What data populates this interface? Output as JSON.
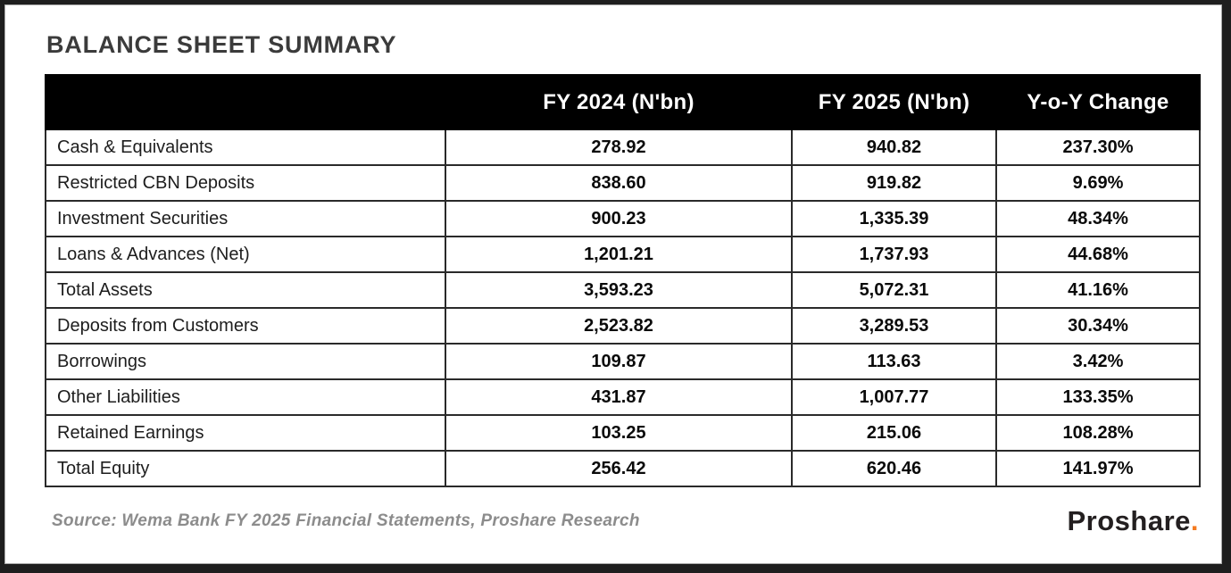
{
  "title": "BALANCE SHEET SUMMARY",
  "chart_data": {
    "type": "table",
    "title": "BALANCE SHEET SUMMARY",
    "columns": [
      "FY 2024 (N'bn)",
      "FY 2025 (N'bn)",
      "Y-o-Y Change"
    ],
    "rows": [
      {
        "label": "Cash & Equivalents",
        "values": [
          "278.92",
          "940.82",
          "237.30%"
        ]
      },
      {
        "label": "Restricted CBN Deposits",
        "values": [
          "838.60",
          "919.82",
          "9.69%"
        ]
      },
      {
        "label": "Investment Securities",
        "values": [
          "900.23",
          "1,335.39",
          "48.34%"
        ]
      },
      {
        "label": "Loans & Advances (Net)",
        "values": [
          "1,201.21",
          "1,737.93",
          "44.68%"
        ]
      },
      {
        "label": "Total Assets",
        "values": [
          "3,593.23",
          "5,072.31",
          "41.16%"
        ]
      },
      {
        "label": "Deposits from Customers",
        "values": [
          "2,523.82",
          "3,289.53",
          "30.34%"
        ]
      },
      {
        "label": "Borrowings",
        "values": [
          "109.87",
          "113.63",
          "3.42%"
        ]
      },
      {
        "label": "Other Liabilities",
        "values": [
          "431.87",
          "1,007.77",
          "133.35%"
        ]
      },
      {
        "label": "Retained Earnings",
        "values": [
          "103.25",
          "215.06",
          "108.28%"
        ]
      },
      {
        "label": "Total Equity",
        "values": [
          "256.42",
          "620.46",
          "141.97%"
        ]
      }
    ],
    "layout": {
      "header_bg": "#000000",
      "header_text": "#ffffff",
      "grid": true,
      "value_alignment": "center"
    },
    "source": "Source: Wema Bank FY 2025 Financial Statements, Proshare Research"
  },
  "footer": {
    "source": "Source: Wema Bank FY 2025 Financial Statements, Proshare Research",
    "logo_text": "Proshare",
    "logo_dot": "."
  },
  "colors": {
    "frame": "#1e1e1e",
    "title": "#3b3b3b",
    "header_bg": "#000000",
    "header_text": "#ffffff",
    "accent_orange": "#f47b20",
    "source_text": "#8c8c8c"
  }
}
